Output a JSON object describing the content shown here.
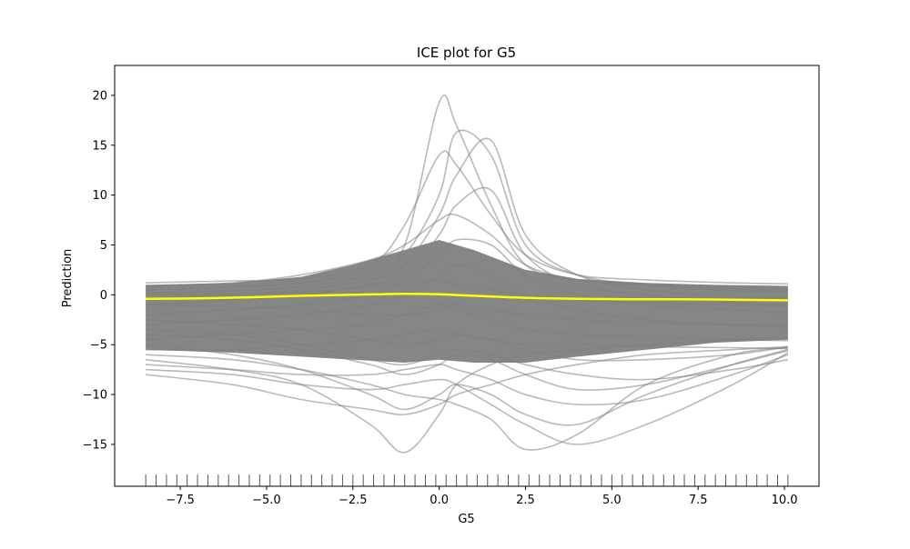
{
  "chart_data": {
    "type": "line",
    "title": "ICE plot for G5",
    "xlabel": "G5",
    "ylabel": "Prediction",
    "xlim": [
      -9.4,
      11.0
    ],
    "ylim": [
      -19.2,
      23.0
    ],
    "x_ticks": [
      -7.5,
      -5.0,
      -2.5,
      0.0,
      2.5,
      5.0,
      7.5,
      10.0
    ],
    "x_tick_labels": [
      "−7.5",
      "−5.0",
      "−2.5",
      "0.0",
      "2.5",
      "5.0",
      "7.5",
      "10.0"
    ],
    "y_ticks": [
      20,
      15,
      10,
      5,
      0,
      -5,
      -10,
      -15
    ],
    "y_tick_labels": [
      "20",
      "15",
      "10",
      "5",
      "0",
      "−5",
      "−10",
      "−15"
    ],
    "grid": false,
    "legend": false,
    "colors": {
      "ice_lines": "#808080",
      "mean_line": "#ffff00",
      "rug": "#555555"
    },
    "series": [
      {
        "role": "mean",
        "x": [
          -8.5,
          -7.0,
          -5.5,
          -4.0,
          -2.5,
          -1.0,
          0.0,
          1.0,
          2.5,
          4.0,
          5.5,
          7.0,
          8.5,
          10.1
        ],
        "values": [
          -0.4,
          -0.35,
          -0.25,
          -0.1,
          0.0,
          0.1,
          0.05,
          -0.1,
          -0.3,
          -0.4,
          -0.45,
          -0.45,
          -0.5,
          -0.55
        ]
      },
      {
        "role": "ice",
        "x": [
          -8.5,
          -6,
          -4,
          -2,
          -1,
          0,
          0.5,
          1.5,
          2.5,
          4,
          6,
          8.5,
          10.1
        ],
        "values": [
          1.2,
          1.4,
          1.6,
          3,
          7,
          14,
          13,
          8,
          4,
          2,
          1.5,
          1.2,
          1.1
        ]
      },
      {
        "role": "ice",
        "x": [
          -8.5,
          -6,
          -4,
          -2,
          -1,
          0,
          0.5,
          1.5,
          2.5,
          4,
          6,
          8.5,
          10.1
        ],
        "values": [
          0.5,
          0.8,
          1.2,
          2.5,
          5,
          19.3,
          17,
          9,
          3,
          1.5,
          1,
          0.6,
          0.5
        ]
      },
      {
        "role": "ice",
        "x": [
          -8.5,
          -6,
          -4,
          -2,
          -1,
          0,
          0.5,
          1.5,
          2.5,
          4,
          6,
          8.5,
          10.1
        ],
        "values": [
          0.2,
          0.4,
          0.8,
          2,
          4,
          10,
          16.3,
          14,
          5,
          2,
          1,
          0.4,
          0.3
        ]
      },
      {
        "role": "ice",
        "x": [
          -8.5,
          -6,
          -4,
          -2,
          -1,
          0,
          0.5,
          1.5,
          2.5,
          4,
          6,
          8.5,
          10.1
        ],
        "values": [
          -0.5,
          0,
          0.5,
          1.5,
          3,
          8,
          12,
          15.5,
          6,
          2,
          0.5,
          -0.2,
          -0.3
        ]
      },
      {
        "role": "ice",
        "x": [
          -8.5,
          -6,
          -4,
          -2,
          -1,
          0,
          0.5,
          1.5,
          2.5,
          4,
          6,
          8.5,
          10.1
        ],
        "values": [
          -1,
          -0.5,
          0,
          1,
          2,
          6,
          9,
          10.5,
          4,
          1,
          0,
          -0.8,
          -1
        ]
      },
      {
        "role": "ice",
        "x": [
          -8.5,
          -6,
          -4,
          -2,
          -1,
          0,
          0.5,
          1.5,
          2.5,
          4,
          6,
          8.5,
          10.1
        ],
        "values": [
          0.8,
          1.2,
          2,
          3.5,
          5,
          7.5,
          8,
          6,
          3,
          1.5,
          1,
          0.8,
          0.7
        ]
      },
      {
        "role": "ice",
        "x": [
          -8.5,
          -6,
          -4,
          -2,
          -1,
          0,
          0.5,
          1.5,
          2.5,
          4,
          6,
          8.5,
          10.1
        ],
        "values": [
          -2,
          -1.5,
          -1,
          0,
          1.5,
          4,
          5.5,
          5,
          2,
          0,
          -1,
          -1.5,
          -1.8
        ]
      },
      {
        "role": "ice",
        "x": [
          -8.5,
          -6,
          -4,
          -2,
          -1,
          0,
          0.5,
          1.5,
          2.5,
          4,
          6,
          8.5,
          10.1
        ],
        "values": [
          -3,
          -2.5,
          -2,
          -1,
          0,
          2,
          3,
          2,
          0,
          -1.5,
          -2.5,
          -3,
          -3.2
        ]
      },
      {
        "role": "ice",
        "x": [
          -8.5,
          -6,
          -4,
          -2,
          -1,
          0,
          0.5,
          1.5,
          2.5,
          4,
          6,
          8.5,
          10.1
        ],
        "values": [
          -4.5,
          -4,
          -3.5,
          -3,
          -2,
          -1,
          -1.5,
          -2.5,
          -3.5,
          -4,
          -4.2,
          -4.5,
          -4.6
        ]
      },
      {
        "role": "ice",
        "x": [
          -8.5,
          -6,
          -4,
          -2,
          -1,
          0,
          0.5,
          1.5,
          2.5,
          4,
          6,
          8.5,
          10.1
        ],
        "values": [
          -5.5,
          -5.5,
          -5,
          -4.5,
          -4,
          -3.5,
          -4,
          -4.5,
          -5,
          -5,
          -5.2,
          -5.3,
          -5.4
        ]
      },
      {
        "role": "ice",
        "x": [
          -8.5,
          -6,
          -4,
          -2,
          -1,
          0,
          0.5,
          1.5,
          2.5,
          4,
          6,
          8.5,
          10.1
        ],
        "values": [
          -8,
          -9,
          -10.5,
          -11.5,
          -12,
          -11,
          -10,
          -9,
          -8,
          -7,
          -6,
          -5.5,
          -5.2
        ]
      },
      {
        "role": "ice",
        "x": [
          -8.5,
          -6,
          -4,
          -2,
          -1,
          0,
          0.5,
          1.5,
          2.5,
          4,
          6,
          8.5,
          10.1
        ],
        "values": [
          -6.5,
          -7.5,
          -9,
          -13,
          -15.8,
          -12,
          -9,
          -7,
          -6,
          -5.5,
          -5,
          -4.5,
          -4.3
        ]
      },
      {
        "role": "ice",
        "x": [
          -8.5,
          -6,
          -4,
          -2,
          -1,
          0,
          0.5,
          1.5,
          2.5,
          4,
          6,
          8.5,
          10.1
        ],
        "values": [
          -6,
          -6.5,
          -7.5,
          -9,
          -10,
          -10.5,
          -11,
          -12.5,
          -15.5,
          -14,
          -9,
          -6,
          -5.3
        ]
      },
      {
        "role": "ice",
        "x": [
          -8.5,
          -6,
          -4,
          -2,
          -1,
          0,
          0.5,
          1.5,
          2.5,
          4,
          6,
          8.5,
          10.1
        ],
        "values": [
          -7.5,
          -8,
          -9,
          -9.5,
          -9,
          -8.5,
          -9,
          -11,
          -13,
          -15,
          -13,
          -9,
          -5.8
        ]
      },
      {
        "role": "ice",
        "x": [
          -8.5,
          -6,
          -4,
          -2,
          -1,
          0,
          0.5,
          1.5,
          2.5,
          4,
          6,
          8.5,
          10.1
        ],
        "values": [
          -5,
          -6,
          -7.5,
          -10,
          -11.5,
          -10,
          -9,
          -10,
          -12,
          -13,
          -10,
          -7,
          -5.5
        ]
      },
      {
        "role": "ice",
        "x": [
          -8.5,
          -6,
          -4,
          -2,
          -1,
          0,
          0.5,
          1.5,
          2.5,
          4,
          6,
          8.5,
          10.1
        ],
        "values": [
          -3.5,
          -4,
          -5,
          -6.5,
          -7,
          -6,
          -5.5,
          -6,
          -7,
          -8,
          -8.5,
          -7.5,
          -6.5
        ]
      },
      {
        "role": "ice",
        "x": [
          -8.5,
          -6,
          -4,
          -2,
          -1,
          0,
          0.5,
          1.5,
          2.5,
          4,
          6,
          8.5,
          10.1
        ],
        "values": [
          -2.5,
          -3,
          -3.5,
          -4.5,
          -5,
          -4.5,
          -4,
          -4.5,
          -5.5,
          -6.5,
          -6.5,
          -6,
          -5.2
        ]
      },
      {
        "role": "ice",
        "x": [
          -8.5,
          -6,
          -4,
          -2,
          -1,
          0,
          0.5,
          1.5,
          2.5,
          4,
          6,
          8.5,
          10.1
        ],
        "values": [
          -1,
          -1.2,
          -1.5,
          -2,
          -2,
          -1.5,
          -1,
          -1.5,
          -2,
          -2.5,
          -2.8,
          -3,
          -3
        ]
      },
      {
        "role": "ice",
        "x": [
          -8.5,
          -6,
          -4,
          -2,
          -1,
          0,
          0.5,
          1.5,
          2.5,
          4,
          6,
          8.5,
          10.1
        ],
        "values": [
          0,
          0.1,
          0.3,
          0.8,
          1.2,
          1.5,
          1,
          0.5,
          0,
          -0.5,
          -0.8,
          -1,
          -1.1
        ]
      },
      {
        "role": "ice",
        "x": [
          -8.5,
          -6,
          -4,
          -2,
          -1,
          0,
          0.5,
          1.5,
          2.5,
          4,
          6,
          8.5,
          10.1
        ],
        "values": [
          -4,
          -4.5,
          -5.5,
          -7,
          -8,
          -7,
          -6,
          -6.5,
          -8,
          -9.5,
          -9,
          -7,
          -5.6
        ]
      },
      {
        "role": "ice",
        "x": [
          -8.5,
          -6,
          -4,
          -2,
          -1,
          0,
          0.5,
          1.5,
          2.5,
          4,
          6,
          8.5,
          10.1
        ],
        "values": [
          -7,
          -7.5,
          -8,
          -8,
          -7.5,
          -7,
          -7.5,
          -8.5,
          -10,
          -11,
          -10.5,
          -8,
          -6
        ]
      }
    ],
    "rug_x": [
      -8.5,
      -8.2,
      -7.9,
      -7.6,
      -7.3,
      -7.0,
      -6.7,
      -6.4,
      -6.1,
      -5.8,
      -5.5,
      -5.2,
      -4.9,
      -4.6,
      -4.3,
      -4.0,
      -3.7,
      -3.4,
      -3.1,
      -2.8,
      -2.5,
      -2.2,
      -1.9,
      -1.6,
      -1.3,
      -1.0,
      -0.7,
      -0.4,
      -0.1,
      0.2,
      0.5,
      0.8,
      1.1,
      1.4,
      1.7,
      2.0,
      2.3,
      2.6,
      2.9,
      3.2,
      3.5,
      3.8,
      4.1,
      4.4,
      4.7,
      5.0,
      5.3,
      5.6,
      5.9,
      6.2,
      6.5,
      6.8,
      7.1,
      7.4,
      7.7,
      8.0,
      8.3,
      8.6,
      8.9,
      9.2,
      9.5,
      9.8,
      10.1
    ]
  }
}
